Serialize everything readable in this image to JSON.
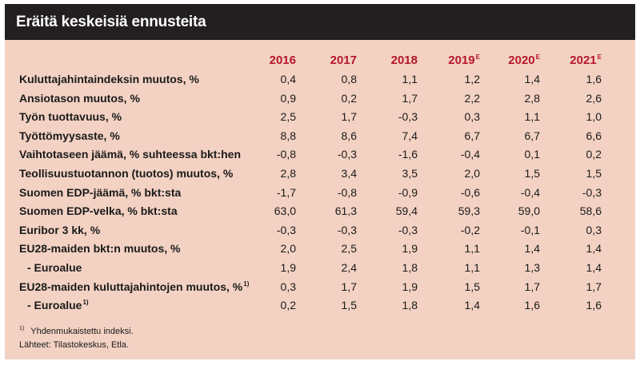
{
  "title": "Eräitä keskeisiä ennusteita",
  "years": [
    {
      "label": "2016",
      "mark": ""
    },
    {
      "label": "2017",
      "mark": ""
    },
    {
      "label": "2018",
      "mark": ""
    },
    {
      "label": "2019",
      "mark": "E"
    },
    {
      "label": "2020",
      "mark": "E"
    },
    {
      "label": "2021",
      "mark": "E"
    }
  ],
  "rows": [
    {
      "label": "Kuluttajahintaindeksin muutos, %",
      "note": "",
      "values": [
        "0,4",
        "0,8",
        "1,1",
        "1,2",
        "1,4",
        "1,6"
      ]
    },
    {
      "label": "Ansiotason muutos, %",
      "note": "",
      "values": [
        "0,9",
        "0,2",
        "1,7",
        "2,2",
        "2,8",
        "2,6"
      ]
    },
    {
      "label": "Työn tuottavuus, %",
      "note": "",
      "values": [
        "2,5",
        "1,7",
        "-0,3",
        "0,3",
        "1,1",
        "1,0"
      ]
    },
    {
      "label": "Työttömyysaste, %",
      "note": "",
      "values": [
        "8,8",
        "8,6",
        "7,4",
        "6,7",
        "6,7",
        "6,6"
      ]
    },
    {
      "label": "Vaihtotaseen jäämä, % suhteessa bkt:hen",
      "note": "",
      "values": [
        "-0,8",
        "-0,3",
        "-1,6",
        "-0,4",
        "0,1",
        "0,2"
      ]
    },
    {
      "label": "Teollisuustuotannon (tuotos) muutos, %",
      "note": "",
      "values": [
        "2,8",
        "3,4",
        "3,5",
        "2,0",
        "1,5",
        "1,5"
      ]
    },
    {
      "label": "Suomen EDP-jäämä, % bkt:sta",
      "note": "",
      "values": [
        "-1,7",
        "-0,8",
        "-0,9",
        "-0,6",
        "-0,4",
        "-0,3"
      ]
    },
    {
      "label": "Suomen EDP-velka, % bkt:sta",
      "note": "",
      "values": [
        "63,0",
        "61,3",
        "59,4",
        "59,3",
        "59,0",
        "58,6"
      ]
    },
    {
      "label": "Euribor 3 kk, %",
      "note": "",
      "values": [
        "-0,3",
        "-0,3",
        "-0,3",
        "-0,2",
        "-0,1",
        "0,3"
      ]
    },
    {
      "label": "EU28-maiden bkt:n muutos, %",
      "note": "",
      "values": [
        "2,0",
        "2,5",
        "1,9",
        "1,1",
        "1,4",
        "1,4"
      ]
    },
    {
      "label": "- Euroalue",
      "note": "",
      "values": [
        "1,9",
        "2,4",
        "1,8",
        "1,1",
        "1,3",
        "1,4"
      ]
    },
    {
      "label": "EU28-maiden kuluttajahintojen muutos, %",
      "note": "1)",
      "values": [
        "0,3",
        "1,7",
        "1,9",
        "1,5",
        "1,7",
        "1,7"
      ]
    },
    {
      "label": "- Euroalue",
      "note": "1)",
      "values": [
        "0,2",
        "1,5",
        "1,8",
        "1,4",
        "1,6",
        "1,6"
      ]
    }
  ],
  "footnotes": {
    "marker": "1)",
    "index_note": "Yhdenmukaistettu indeksi.",
    "sources": "Lähteet: Tilastokeskus, Etla."
  },
  "colors": {
    "panel_background": "#f3d2c3",
    "title_bar": "#231f20",
    "year_header": "#b5172a"
  }
}
